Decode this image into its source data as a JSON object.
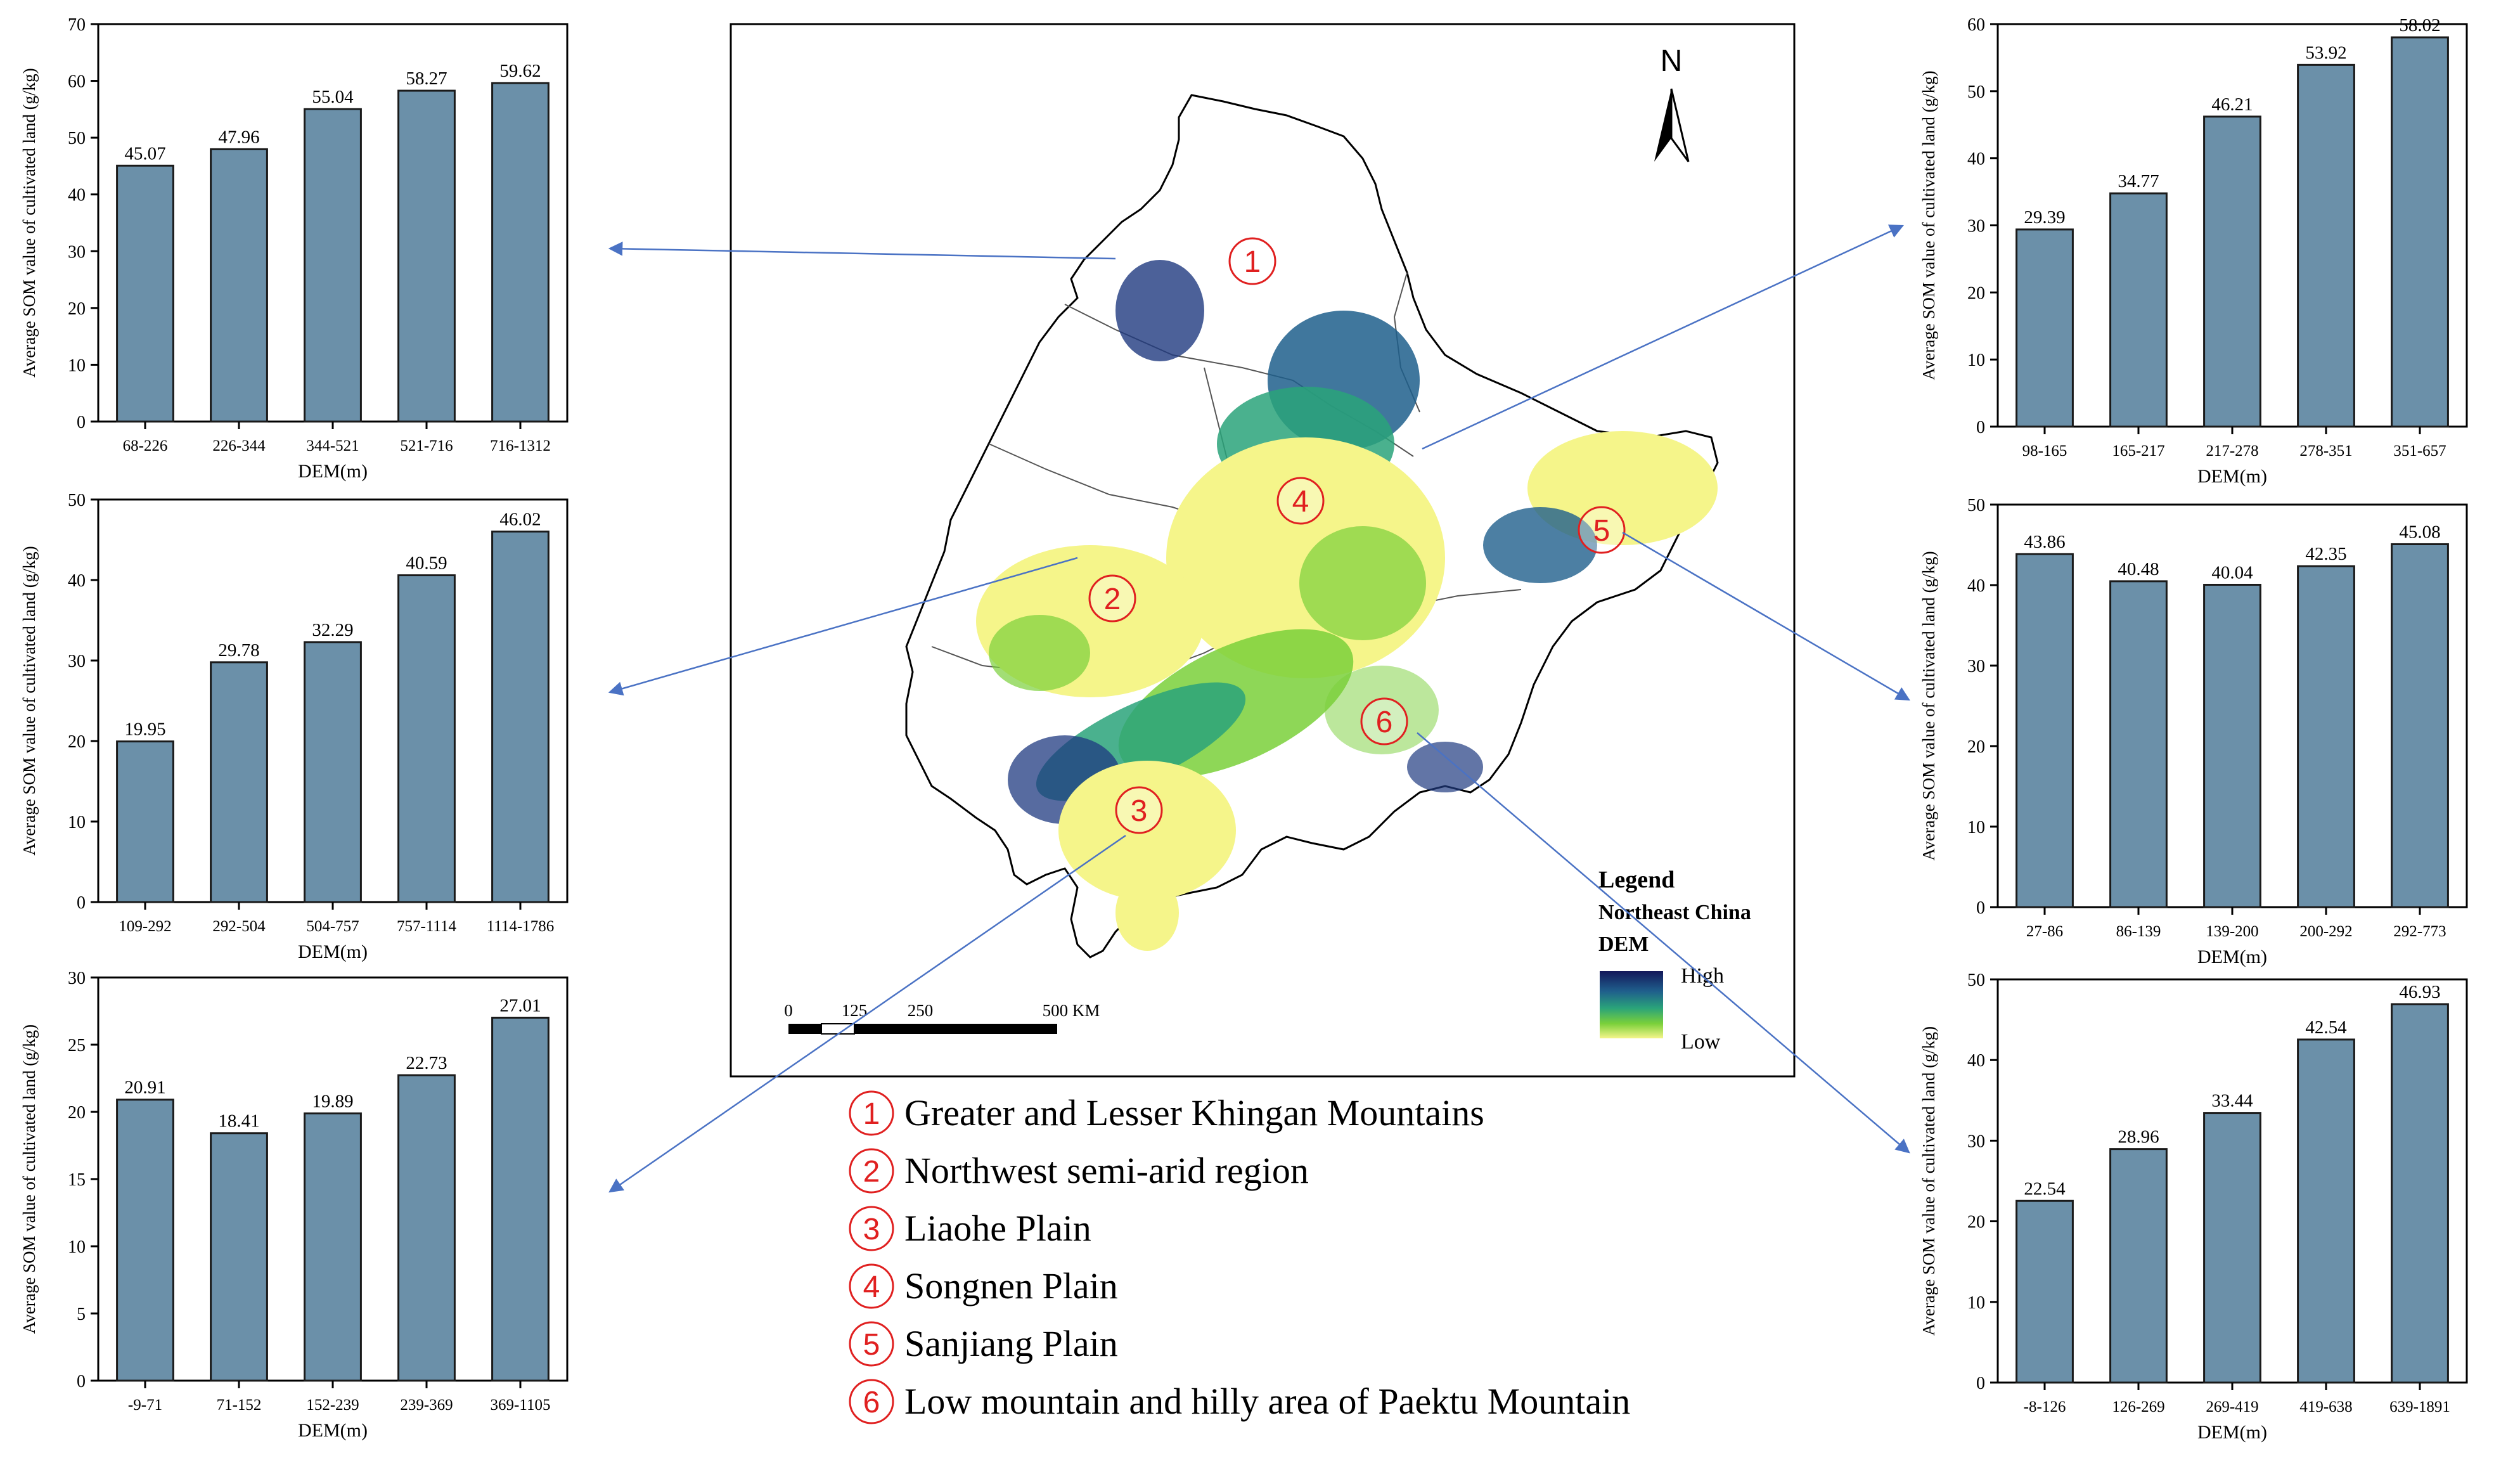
{
  "colors": {
    "bar_fill": "#6b90a9",
    "bar_stroke": "#1a1a1a",
    "arrow": "#4a72c4",
    "marker_red": "#e02020",
    "dem_high": "#13185a",
    "dem_mid": "#2aa37a",
    "dem_green": "#7ad03a",
    "dem_low": "#f5f58a"
  },
  "chart_data": [
    {
      "id": "region-1",
      "type": "bar",
      "categories": [
        "68-226",
        "226-344",
        "344-521",
        "521-716",
        "716-1312"
      ],
      "values": [
        45.07,
        47.96,
        55.04,
        58.27,
        59.62
      ],
      "value_labels": [
        "45.07",
        "47.96",
        "55.04",
        "58.27",
        "59.62"
      ],
      "ylim": [
        0,
        70
      ],
      "yticks": [
        "0",
        "10",
        "20",
        "30",
        "40",
        "50",
        "60",
        "70"
      ],
      "xlabel": "DEM(m)",
      "ylabel": "Average SOM value of cultivated land (g/kg)"
    },
    {
      "id": "region-2",
      "type": "bar",
      "categories": [
        "109-292",
        "292-504",
        "504-757",
        "757-1114",
        "1114-1786"
      ],
      "values": [
        19.95,
        29.78,
        32.29,
        40.59,
        46.02
      ],
      "value_labels": [
        "19.95",
        "29.78",
        "32.29",
        "40.59",
        "46.02"
      ],
      "ylim": [
        0,
        50
      ],
      "yticks": [
        "0",
        "10",
        "20",
        "30",
        "40",
        "50"
      ],
      "xlabel": "DEM(m)",
      "ylabel": "Average SOM value of cultivated land (g/kg)"
    },
    {
      "id": "region-3",
      "type": "bar",
      "categories": [
        "-9-71",
        "71-152",
        "152-239",
        "239-369",
        "369-1105"
      ],
      "values": [
        20.91,
        18.41,
        19.89,
        22.73,
        27.01
      ],
      "value_labels": [
        "20.91",
        "18.41",
        "19.89",
        "22.73",
        "27.01"
      ],
      "ylim": [
        0,
        30
      ],
      "yticks": [
        "0",
        "5",
        "10",
        "15",
        "20",
        "25",
        "30"
      ],
      "xlabel": "DEM(m)",
      "ylabel": "Average SOM value of cultivated land (g/kg)"
    },
    {
      "id": "region-4",
      "type": "bar",
      "categories": [
        "98-165",
        "165-217",
        "217-278",
        "278-351",
        "351-657"
      ],
      "values": [
        29.39,
        34.77,
        46.21,
        53.92,
        58.02
      ],
      "value_labels": [
        "29.39",
        "34.77",
        "46.21",
        "53.92",
        "58.02"
      ],
      "ylim": [
        0,
        60
      ],
      "yticks": [
        "0",
        "10",
        "20",
        "30",
        "40",
        "50",
        "60"
      ],
      "xlabel": "DEM(m)",
      "ylabel": "Average SOM value of cultivated land (g/kg)"
    },
    {
      "id": "region-5",
      "type": "bar",
      "categories": [
        "27-86",
        "86-139",
        "139-200",
        "200-292",
        "292-773"
      ],
      "values": [
        43.86,
        40.48,
        40.04,
        42.35,
        45.08
      ],
      "value_labels": [
        "43.86",
        "40.48",
        "40.04",
        "42.35",
        "45.08"
      ],
      "ylim": [
        0,
        50
      ],
      "yticks": [
        "0",
        "10",
        "20",
        "30",
        "40",
        "50"
      ],
      "xlabel": "DEM(m)",
      "ylabel": "Average SOM value of cultivated land (g/kg)"
    },
    {
      "id": "region-6",
      "type": "bar",
      "categories": [
        "-8-126",
        "126-269",
        "269-419",
        "419-638",
        "639-1891"
      ],
      "values": [
        22.54,
        28.96,
        33.44,
        42.54,
        46.93
      ],
      "value_labels": [
        "22.54",
        "28.96",
        "33.44",
        "42.54",
        "46.93"
      ],
      "ylim": [
        0,
        50
      ],
      "yticks": [
        "0",
        "10",
        "20",
        "30",
        "40",
        "50"
      ],
      "xlabel": "DEM(m)",
      "ylabel": "Average SOM value of cultivated land (g/kg)"
    }
  ],
  "map": {
    "north_label": "N",
    "region_markers": [
      "1",
      "2",
      "3",
      "4",
      "5",
      "6"
    ],
    "legend": {
      "title": "Legend",
      "subtitle": "Northeast China",
      "layer": "DEM",
      "high": "High",
      "low": "Low"
    },
    "scale_bar": {
      "ticks": [
        "0",
        "125",
        "250",
        "500 KM"
      ]
    }
  },
  "region_list": [
    {
      "number": "1",
      "name": "Greater and Lesser Khingan Mountains"
    },
    {
      "number": "2",
      "name": "Northwest semi-arid region"
    },
    {
      "number": "3",
      "name": "Liaohe Plain"
    },
    {
      "number": "4",
      "name": "Songnen Plain"
    },
    {
      "number": "5",
      "name": "Sanjiang Plain"
    },
    {
      "number": "6",
      "name": "Low mountain and hilly area of Paektu Mountain"
    }
  ]
}
